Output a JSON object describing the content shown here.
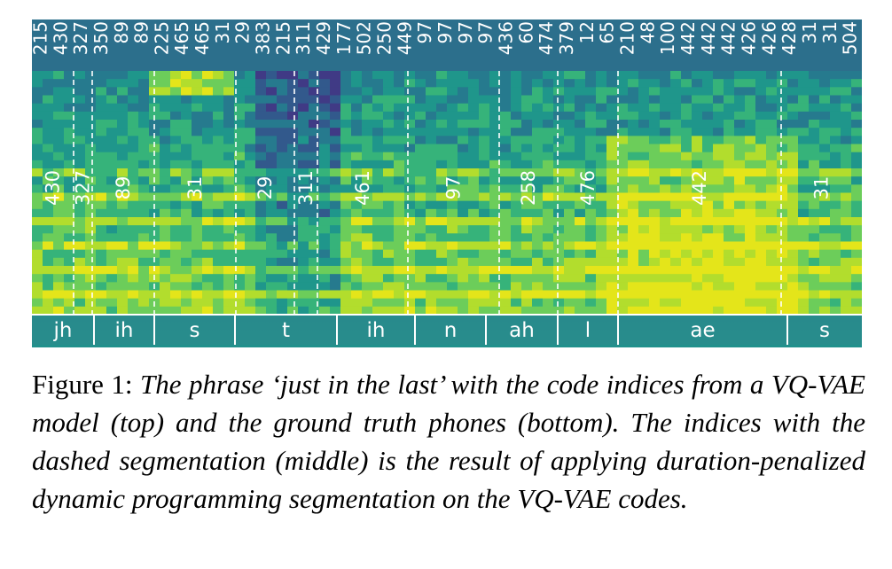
{
  "top_codes": [
    "215",
    "430",
    "327",
    "350",
    "89",
    "89",
    "225",
    "465",
    "465",
    "31",
    "29",
    "383",
    "215",
    "311",
    "429",
    "177",
    "502",
    "250",
    "449",
    "97",
    "97",
    "97",
    "97",
    "436",
    "60",
    "474",
    "379",
    "12",
    "65",
    "210",
    "48",
    "100",
    "442",
    "442",
    "442",
    "426",
    "426",
    "428",
    "31",
    "31",
    "504"
  ],
  "segments": [
    {
      "code": "430"
    },
    {
      "code": "327"
    },
    {
      "code": "89"
    },
    {
      "code": "31"
    },
    {
      "code": "29"
    },
    {
      "code": "311"
    },
    {
      "code": "461"
    },
    {
      "code": "97"
    },
    {
      "code": "258"
    },
    {
      "code": "476"
    },
    {
      "code": "442"
    },
    {
      "code": "31"
    }
  ],
  "phones": [
    {
      "label": "jh"
    },
    {
      "label": "ih"
    },
    {
      "label": "s"
    },
    {
      "label": "t"
    },
    {
      "label": "ih"
    },
    {
      "label": "n"
    },
    {
      "label": "ah"
    },
    {
      "label": "l"
    },
    {
      "label": "ae"
    },
    {
      "label": "s"
    }
  ],
  "caption": {
    "lead": "Figure 1: ",
    "text": "The phrase ‘just in the last’ with the code indices from a VQ-VAE model (top) and the ground truth phones (bottom). The indices with the dashed segmentation (middle) is the result of applying duration-penalized dynamic programming segmentation on the VQ-VAE codes."
  }
}
